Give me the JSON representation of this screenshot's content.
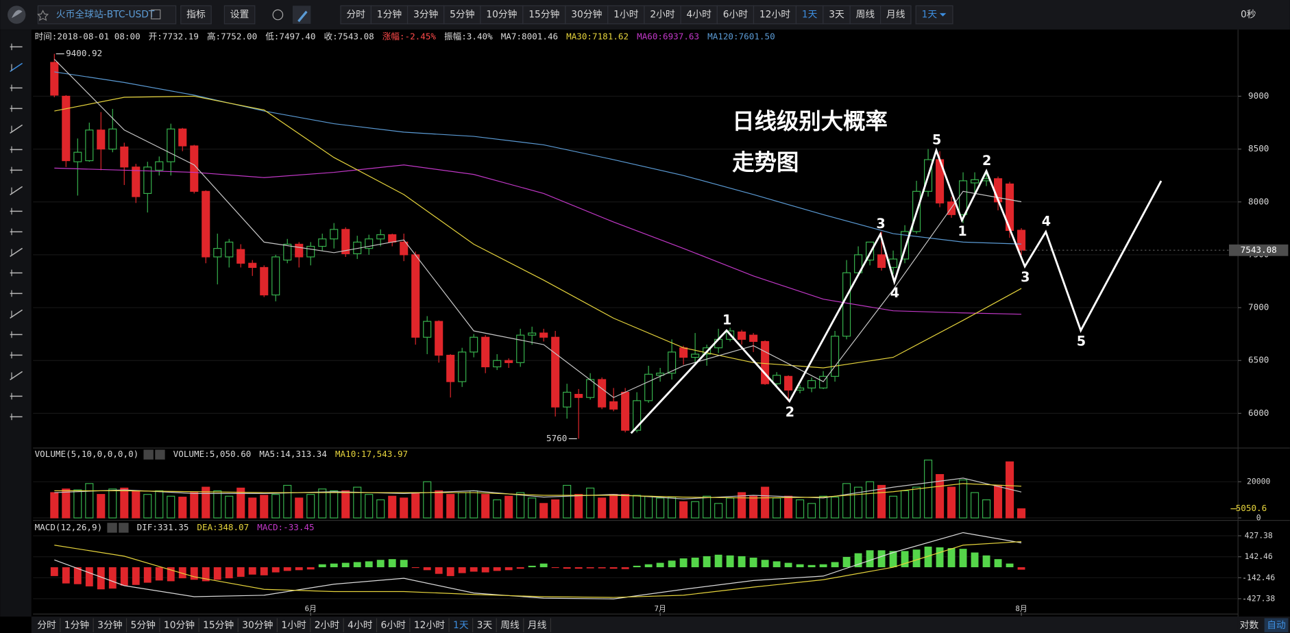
{
  "toolbar": {
    "symbol": "火币全球站-BTC-USDT",
    "buttons": [
      "指标",
      "设置"
    ],
    "periods": [
      "分时",
      "1分钟",
      "3分钟",
      "5分钟",
      "10分钟",
      "15分钟",
      "30分钟",
      "1小时",
      "2小时",
      "4小时",
      "6小时",
      "12小时",
      "1天",
      "3天",
      "周线",
      "月线"
    ],
    "active_period": "1天",
    "countdown": "0秒"
  },
  "info_bar": [
    {
      "text": "时间:2018-08-01 08:00",
      "color": "#dddddd"
    },
    {
      "text": "开:7732.19",
      "color": "#dddddd"
    },
    {
      "text": "高:7752.00",
      "color": "#dddddd"
    },
    {
      "text": "低:7497.40",
      "color": "#dddddd"
    },
    {
      "text": "收:7543.08",
      "color": "#dddddd"
    },
    {
      "text": "涨幅:-2.45%",
      "color": "#ff4a4a"
    },
    {
      "text": "振幅:3.40%",
      "color": "#dddddd"
    },
    {
      "text": "MA7:8001.46",
      "color": "#dddddd"
    },
    {
      "text": "MA30:7181.62",
      "color": "#e6d43c"
    },
    {
      "text": "MA60:6937.63",
      "color": "#c238c8"
    },
    {
      "text": "MA120:7601.50",
      "color": "#5b9bd5"
    }
  ],
  "annotation": [
    "日线级别大概率",
    "走势图"
  ],
  "chart_data": [
    {
      "type": "candlestick",
      "up_color": "#37b24d",
      "down_color": "#e0262b",
      "grid": true,
      "xlim": [
        -1.83,
        101.6
      ],
      "ylim": [
        5672,
        9599
      ],
      "yticks": [
        6000,
        6500,
        7000,
        7500,
        8000,
        8500,
        9000
      ],
      "xticks": [
        {
          "value": 22,
          "label": "6月"
        },
        {
          "value": 52,
          "label": "7月"
        },
        {
          "value": 83,
          "label": "8月"
        }
      ],
      "open": [
        9320,
        9000,
        8380,
        8390,
        8680,
        8500,
        8520,
        8330,
        8080,
        8300,
        8380,
        8690,
        8530,
        8100,
        7480,
        7480,
        7550,
        7420,
        7380,
        7120,
        7450,
        7600,
        7480,
        7580,
        7650,
        7740,
        7510,
        7560,
        7650,
        7690,
        7620,
        7500,
        6720,
        6870,
        6550,
        6300,
        6580,
        6720,
        6440,
        6500,
        6480,
        6740,
        6760,
        6720,
        6060,
        6180,
        6150,
        6320,
        6110,
        6200,
        5840,
        6120,
        6360,
        6380,
        6620,
        6530,
        6560,
        6620,
        6700,
        6770,
        6740,
        6680,
        6280,
        6350,
        6220,
        6240,
        6240,
        6350,
        6730,
        7330,
        7450,
        7500,
        7380,
        7460,
        7720,
        8100,
        8400,
        8000,
        7880,
        8180,
        8200,
        8220,
        8170,
        7732.19
      ],
      "high": [
        9400.92,
        9010,
        8600,
        8750,
        8850,
        8880,
        8560,
        8360,
        8380,
        8430,
        8740,
        8700,
        8540,
        8110,
        7700,
        7650,
        7600,
        7450,
        7400,
        7500,
        7650,
        7620,
        7620,
        7700,
        7800,
        7760,
        7680,
        7690,
        7740,
        7700,
        7700,
        7530,
        6920,
        6880,
        6560,
        6620,
        6750,
        6740,
        6560,
        6520,
        6800,
        6820,
        6800,
        6780,
        6280,
        6230,
        6380,
        6340,
        6240,
        6240,
        6200,
        6450,
        6430,
        6700,
        6640,
        6760,
        6650,
        6800,
        6810,
        6790,
        6760,
        6690,
        6390,
        6360,
        6270,
        6340,
        6400,
        6780,
        7450,
        7580,
        7620,
        7720,
        7540,
        7780,
        8200,
        8500,
        8480,
        8050,
        8280,
        8280,
        8270,
        8240,
        8190,
        7752
      ],
      "low": [
        8990,
        8330,
        8060,
        8380,
        8300,
        8470,
        8160,
        7990,
        7900,
        8250,
        8250,
        8480,
        8080,
        7420,
        7220,
        7380,
        7380,
        7300,
        7100,
        7060,
        7420,
        7380,
        7400,
        7540,
        7560,
        7480,
        7460,
        7500,
        7580,
        7580,
        7440,
        6650,
        6560,
        6480,
        6150,
        6250,
        6530,
        6380,
        6410,
        6430,
        6440,
        6650,
        6680,
        5970,
        5950,
        5760,
        6130,
        6040,
        6020,
        5820,
        5820,
        6100,
        6300,
        6320,
        6460,
        6480,
        6450,
        6570,
        6680,
        6650,
        6580,
        6270,
        6240,
        6110,
        6190,
        6200,
        6230,
        6300,
        6700,
        7300,
        7400,
        7350,
        7320,
        7420,
        7700,
        8050,
        7950,
        7850,
        7800,
        8060,
        8150,
        7920,
        7660,
        7497.4
      ],
      "close": [
        9010,
        8390,
        8470,
        8680,
        8500,
        8690,
        8330,
        8050,
        8330,
        8380,
        8690,
        8530,
        8100,
        7480,
        7560,
        7620,
        7420,
        7380,
        7120,
        7480,
        7600,
        7480,
        7580,
        7650,
        7740,
        7510,
        7620,
        7650,
        7690,
        7620,
        7500,
        6720,
        6870,
        6550,
        6300,
        6580,
        6720,
        6440,
        6500,
        6480,
        6740,
        6760,
        6720,
        6060,
        6200,
        6150,
        6320,
        6060,
        6040,
        5840,
        6120,
        6370,
        6380,
        6580,
        6530,
        6560,
        6620,
        6700,
        6780,
        6700,
        6680,
        6280,
        6360,
        6220,
        6240,
        6310,
        6350,
        6730,
        7330,
        7500,
        7620,
        7380,
        7460,
        7720,
        8100,
        8400,
        7990,
        7880,
        8200,
        8210,
        8220,
        8000,
        7730,
        7543.08
      ],
      "series": [
        {
          "color": "#5b9bd5",
          "x": [
            0,
            6,
            12,
            18,
            24,
            30,
            36,
            42,
            48,
            54,
            60,
            66,
            72,
            78,
            83
          ],
          "values": [
            9230,
            9130,
            9010,
            8860,
            8740,
            8660,
            8620,
            8540,
            8400,
            8250,
            8070,
            7880,
            7700,
            7620,
            7601.5
          ]
        },
        {
          "color": "#c238c8",
          "x": [
            0,
            6,
            12,
            18,
            24,
            30,
            36,
            42,
            48,
            54,
            60,
            66,
            72,
            78,
            83
          ],
          "values": [
            8320,
            8300,
            8280,
            8230,
            8280,
            8350,
            8260,
            8080,
            7810,
            7560,
            7300,
            7080,
            6970,
            6950,
            6937.63
          ]
        },
        {
          "color": "#e6d43c",
          "x": [
            0,
            6,
            12,
            18,
            24,
            30,
            36,
            42,
            48,
            54,
            60,
            66,
            72,
            78,
            83
          ],
          "values": [
            8860,
            8990,
            9000,
            8870,
            8420,
            8070,
            7600,
            7260,
            6900,
            6620,
            6480,
            6430,
            6530,
            6880,
            7181.62
          ]
        },
        {
          "color": "#c8c8c8",
          "x": [
            0,
            6,
            12,
            18,
            24,
            30,
            36,
            42,
            48,
            54,
            60,
            66,
            72,
            78,
            83
          ],
          "values": [
            9350,
            8680,
            8350,
            7620,
            7520,
            7640,
            6780,
            6650,
            6150,
            6450,
            6640,
            6300,
            7170,
            8100,
            8001.46
          ]
        }
      ],
      "wave": {
        "color": "#ffffff",
        "x": [
          49.5,
          57.7,
          63.1,
          70.9,
          72.1,
          75.7,
          77.9,
          80.0,
          83.3,
          85.1,
          88.1,
          95.0
        ],
        "values": [
          5812,
          6784,
          6115,
          7694,
          7243,
          8487,
          7826,
          8292,
          7390,
          7717,
          6784,
          8199
        ],
        "labels": [
          null,
          "1",
          "2",
          "3",
          "4",
          "5",
          "1",
          "2",
          "3",
          "4",
          "5",
          null
        ]
      }
    },
    {
      "type": "volume",
      "grid": true,
      "ylim": [
        -1364,
        38636
      ],
      "yticks": [
        0,
        20000
      ],
      "legend": [
        {
          "text": "VOLUME(5,10,0,0,0,0)",
          "color": "#dddddd"
        },
        {
          "text": "VOLUME:5,050.60",
          "color": "#dddddd"
        },
        {
          "text": "MA5:14,313.34",
          "color": "#dddddd"
        },
        {
          "text": "MA10:17,543.97",
          "color": "#e6d43c"
        }
      ],
      "values": [
        14000,
        16000,
        15500,
        19000,
        13000,
        16000,
        16500,
        15000,
        13000,
        15000,
        12000,
        11500,
        14000,
        17000,
        15000,
        12000,
        16500,
        11000,
        12500,
        13000,
        18000,
        11000,
        13000,
        16000,
        15000,
        15000,
        17000,
        13000,
        10000,
        12000,
        11000,
        14000,
        20000,
        15000,
        13000,
        14000,
        15000,
        13000,
        10000,
        12000,
        14000,
        11000,
        8000,
        10000,
        18000,
        13000,
        16500,
        11000,
        13000,
        13000,
        12500,
        12000,
        11000,
        11500,
        9000,
        9000,
        12000,
        8000,
        11000,
        14000,
        12000,
        17000,
        11000,
        12000,
        10000,
        8000,
        12000,
        11500,
        19000,
        17000,
        20000,
        18000,
        12000,
        15000,
        17000,
        32000,
        24000,
        17000,
        21000,
        14000,
        10000,
        18000,
        31000,
        5050.6
      ],
      "series": [
        {
          "color": "#c8c8c8",
          "x": [
            0,
            6,
            12,
            18,
            24,
            30,
            36,
            42,
            48,
            54,
            60,
            66,
            72,
            78,
            83
          ],
          "values": [
            14000,
            15500,
            13500,
            13500,
            14500,
            13500,
            15000,
            11500,
            13000,
            10500,
            12500,
            11000,
            17000,
            22000,
            14313.34
          ]
        },
        {
          "color": "#e6d43c",
          "x": [
            0,
            6,
            12,
            18,
            24,
            30,
            36,
            42,
            48,
            54,
            60,
            66,
            72,
            78,
            83
          ],
          "values": [
            15000,
            15000,
            14500,
            14000,
            14000,
            14000,
            14000,
            12500,
            12500,
            11500,
            11000,
            11500,
            14500,
            19000,
            17543.97
          ]
        }
      ]
    },
    {
      "type": "macd",
      "grid": true,
      "ylim": [
        -614,
        614
      ],
      "yticks": [
        -427.38,
        -142.46,
        142.46,
        427.38
      ],
      "up_color": "#55d64a",
      "down_color": "#e0262b",
      "legend": [
        {
          "text": "MACD(12,26,9)",
          "color": "#dddddd"
        },
        {
          "text": "DIF:331.35",
          "color": "#dddddd"
        },
        {
          "text": "DEA:348.07",
          "color": "#e6d43c"
        },
        {
          "text": "MACD:-33.45",
          "color": "#c238c8"
        }
      ],
      "values": [
        -120,
        -220,
        -230,
        -260,
        -300,
        -290,
        -250,
        -240,
        -210,
        -180,
        -190,
        -150,
        -170,
        -190,
        -170,
        -150,
        -130,
        -100,
        -110,
        -70,
        -50,
        -40,
        -30,
        40,
        50,
        60,
        70,
        80,
        100,
        110,
        100,
        -10,
        -40,
        -90,
        -120,
        -80,
        -60,
        -70,
        -50,
        -40,
        -20,
        20,
        50,
        -10,
        -20,
        -20,
        -15,
        -15,
        -20,
        -25,
        20,
        40,
        60,
        90,
        120,
        130,
        150,
        170,
        160,
        150,
        130,
        100,
        80,
        60,
        40,
        30,
        40,
        70,
        140,
        190,
        230,
        230,
        220,
        220,
        240,
        280,
        270,
        260,
        250,
        200,
        160,
        110,
        50,
        -33.45
      ],
      "series": [
        {
          "color": "#dcdcdc",
          "x": [
            0,
            6,
            12,
            18,
            24,
            30,
            36,
            42,
            48,
            54,
            60,
            66,
            72,
            78,
            83
          ],
          "values": [
            100,
            -250,
            -400,
            -380,
            -230,
            -150,
            -350,
            -420,
            -430,
            -300,
            -180,
            -120,
            200,
            470,
            331.35
          ]
        },
        {
          "color": "#e6d43c",
          "x": [
            0,
            6,
            12,
            18,
            24,
            30,
            36,
            42,
            48,
            54,
            60,
            66,
            72,
            78,
            83
          ],
          "values": [
            300,
            150,
            -130,
            -300,
            -330,
            -330,
            -370,
            -400,
            -410,
            -380,
            -270,
            -170,
            0,
            300,
            348.07
          ]
        }
      ]
    }
  ],
  "bottom_bar": {
    "periods": [
      "分时",
      "1分钟",
      "3分钟",
      "5分钟",
      "10分钟",
      "15分钟",
      "30分钟",
      "1小时",
      "2小时",
      "4小时",
      "6小时",
      "12小时",
      "1天",
      "3天",
      "周线",
      "月线"
    ],
    "right": [
      "对数",
      "自动"
    ]
  }
}
